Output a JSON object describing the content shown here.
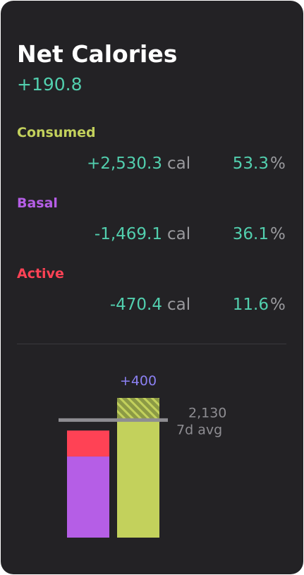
{
  "header": {
    "title": "Net Calories",
    "net": "+190.8"
  },
  "rows": [
    {
      "name": "Consumed",
      "color": "#c3d15c",
      "value": {
        "value": 2530.3,
        "label": "+2,530.3"
      },
      "calorie_unit": "cal",
      "percent": 53.3,
      "percent_unit": "%"
    },
    {
      "name": "Basal",
      "color": "#b55ee6",
      "value": {
        "value": -1469.1,
        "label": "-1,469.1"
      },
      "calorie_unit": "cal",
      "percent": 36.1,
      "percent_unit": "%"
    },
    {
      "name": "Active",
      "color": "#ff4255",
      "value": {
        "value": -470.4,
        "label": "-470.4"
      },
      "calorie_unit": "cal",
      "percent": 11.6,
      "percent_unit": "%"
    }
  ],
  "chart": {
    "surplus": {
      "value": 400,
      "label": "+400"
    },
    "average": {
      "value": 2130,
      "label": "2,130"
    },
    "average_label": "7d avg"
  }
}
